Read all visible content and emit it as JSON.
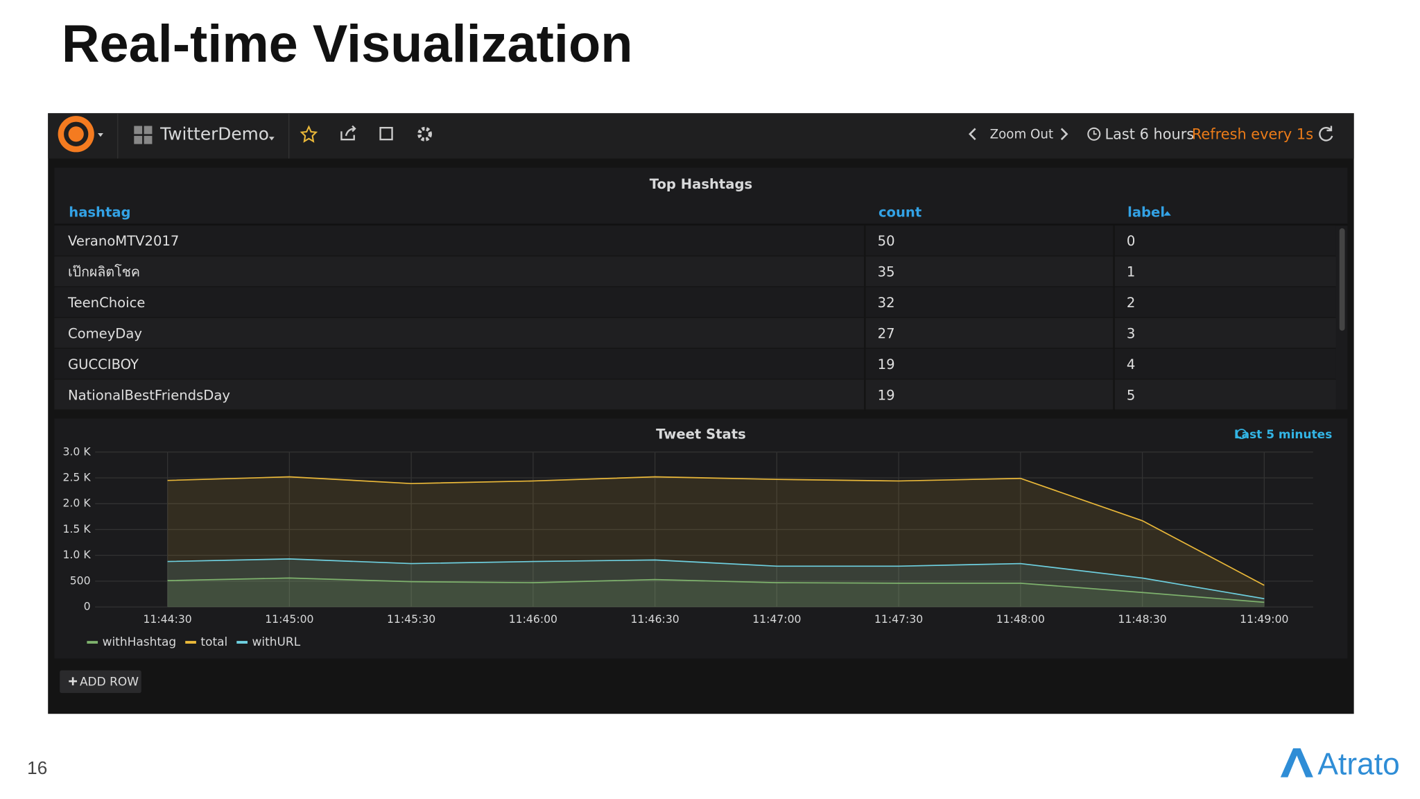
{
  "slide": {
    "title": "Real-time Visualization",
    "page_number": 16,
    "logo": "Atrato"
  },
  "toolbar": {
    "dashboard": "TwitterDemo",
    "zoom": "Zoom Out",
    "time_range": "Last 6 hours",
    "refresh": "Refresh every 1s"
  },
  "table": {
    "title": "Top Hashtags",
    "columns": [
      "hashtag",
      "count",
      "label"
    ],
    "rows": [
      [
        "VeranoMTV2017",
        50,
        0
      ],
      [
        "เป๊กผลิตโชค",
        35,
        1
      ],
      [
        "TeenChoice",
        32,
        2
      ],
      [
        "ComeyDay",
        27,
        3
      ],
      [
        "GUCCIBOY",
        19,
        4
      ],
      [
        "NationalBestFriendsDay",
        19,
        5
      ]
    ]
  },
  "chart_data": {
    "type": "line",
    "title": "Tweet Stats",
    "time_note": "Last 5 minutes",
    "categories": [
      "11:44:30",
      "11:45:00",
      "11:45:30",
      "11:46:00",
      "11:46:30",
      "11:47:00",
      "11:47:30",
      "11:48:00",
      "11:48:30",
      "11:49:00"
    ],
    "series": [
      {
        "name": "withHashtag",
        "color": "#7eb26d",
        "values": [
          510,
          560,
          490,
          470,
          530,
          470,
          460,
          460,
          280,
          90
        ]
      },
      {
        "name": "total",
        "color": "#eab839",
        "values": [
          2450,
          2520,
          2390,
          2440,
          2520,
          2470,
          2440,
          2490,
          1670,
          420
        ]
      },
      {
        "name": "withURL",
        "color": "#6ed0e0",
        "values": [
          880,
          930,
          840,
          880,
          910,
          790,
          790,
          840,
          560,
          160
        ]
      }
    ],
    "ylim": [
      0,
      3000
    ],
    "yticks": [
      0,
      500,
      {
        "value": 1000,
        "label": "1.0 K"
      },
      {
        "value": 1500,
        "label": "1.5 K"
      },
      {
        "value": 2000,
        "label": "2.0 K"
      },
      {
        "value": 2500,
        "label": "2.5 K"
      },
      {
        "value": 3000,
        "label": "3.0 K"
      }
    ],
    "grid": true,
    "fill": true
  },
  "button": "ADD ROW"
}
